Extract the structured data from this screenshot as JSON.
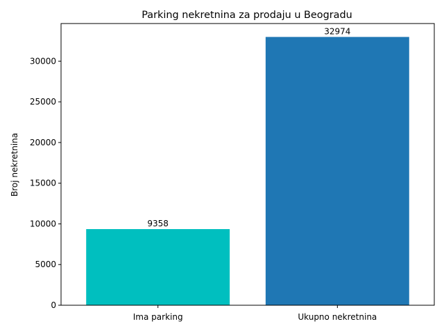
{
  "chart_data": {
    "type": "bar",
    "title": "Parking nekretnina za prodaju u Beogradu",
    "xlabel": "",
    "ylabel": "Broj nekretnina",
    "categories": [
      "Ima parking",
      "Ukupno nekretnina"
    ],
    "values": [
      9358,
      32974
    ],
    "colors": [
      "#00bfbf",
      "#1f77b4"
    ],
    "data_labels": [
      "9358",
      "32974"
    ],
    "ylim": [
      0,
      34622.7
    ],
    "yticks": [
      0,
      5000,
      10000,
      15000,
      20000,
      25000,
      30000
    ],
    "ytick_labels": [
      "0",
      "5000",
      "10000",
      "15000",
      "20000",
      "25000",
      "30000"
    ],
    "grid": false,
    "legend": "none"
  }
}
